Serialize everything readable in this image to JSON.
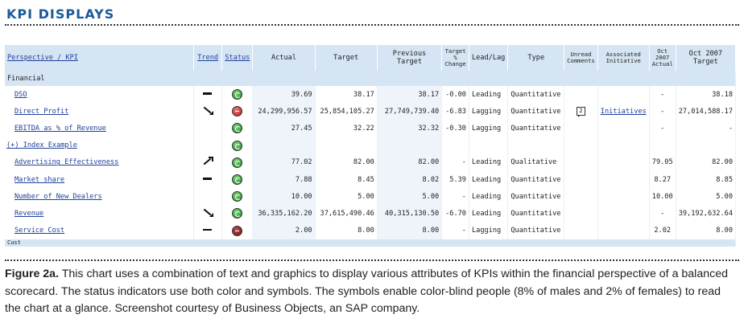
{
  "header": {
    "title": "KPI DISPLAYS"
  },
  "table": {
    "columns": {
      "perspective": "Perspective / KPI",
      "trend": "Trend",
      "status": "Status",
      "actual": "Actual",
      "target": "Target",
      "previous_target": "Previous Target",
      "target_pct_change": "Target % Change",
      "lead_lag": "Lead/Lag",
      "type": "Type",
      "unread_comments": "Unread Comments",
      "associated_initiative": "Associated Initiative",
      "oct_actual": "Oct 2007 Actual",
      "oct_target": "Oct 2007 Target"
    },
    "group_label": "Financial",
    "rows": [
      {
        "kpi": "DSO",
        "trend": "flat",
        "status": "green",
        "actual": "39.69",
        "target": "38.17",
        "prev": "38.17",
        "pct": "-0.00",
        "lead_lag": "Leading",
        "type": "Quantitative",
        "comments": "",
        "initiative": "",
        "oct_actual": "-",
        "oct_target": "38.18",
        "link": true
      },
      {
        "kpi": "Direct Profit",
        "trend": "down",
        "status": "red",
        "actual": "24,299,956.57",
        "target": "25,854,105.27",
        "prev": "27,749,739.40",
        "pct": "-6.83",
        "lead_lag": "Lagging",
        "type": "Quantitative",
        "comments": "2",
        "initiative": "Initiatives",
        "oct_actual": "-",
        "oct_target": "27,014,588.17",
        "link": true
      },
      {
        "kpi": "EBITDA as % of Revenue",
        "trend": "",
        "status": "green",
        "actual": "27.45",
        "target": "32.22",
        "prev": "32.32",
        "pct": "-0.30",
        "lead_lag": "Lagging",
        "type": "Quantitative",
        "comments": "",
        "initiative": "",
        "oct_actual": "-",
        "oct_target": "-",
        "link": true
      },
      {
        "kpi": "(+) Index Example",
        "trend": "",
        "status": "green",
        "actual": "",
        "target": "",
        "prev": "",
        "pct": "",
        "lead_lag": "",
        "type": "",
        "comments": "",
        "initiative": "",
        "oct_actual": "",
        "oct_target": "",
        "link": false
      },
      {
        "kpi": "Advertising Effectiveness",
        "trend": "up",
        "status": "green",
        "actual": "77.02",
        "target": "82.00",
        "prev": "82.00",
        "pct": "-",
        "lead_lag": "Leading",
        "type": "Qualitative",
        "comments": "",
        "initiative": "",
        "oct_actual": "79.05",
        "oct_target": "82.00",
        "link": true
      },
      {
        "kpi": "Market share",
        "trend": "flat",
        "status": "green",
        "actual": "7.88",
        "target": "8.45",
        "prev": "8.02",
        "pct": "5.39",
        "lead_lag": "Leading",
        "type": "Quantitative",
        "comments": "",
        "initiative": "",
        "oct_actual": "8.27",
        "oct_target": "8.85",
        "link": true
      },
      {
        "kpi": "Number of New Dealers",
        "trend": "",
        "status": "green",
        "actual": "10.00",
        "target": "5.00",
        "prev": "5.00",
        "pct": "-",
        "lead_lag": "Leading",
        "type": "Quantitative",
        "comments": "",
        "initiative": "",
        "oct_actual": "10.00",
        "oct_target": "5.00",
        "link": true
      },
      {
        "kpi": "Revenue",
        "trend": "down",
        "status": "green",
        "actual": "36,335,162.20",
        "target": "37,615,490.46",
        "prev": "40,315,130.50",
        "pct": "-6.70",
        "lead_lag": "Leading",
        "type": "Quantitative",
        "comments": "",
        "initiative": "",
        "oct_actual": "-",
        "oct_target": "39,192,632.64",
        "link": true
      },
      {
        "kpi": "Service Cost",
        "trend": "flat",
        "status": "dark",
        "actual": "2.00",
        "target": "8.00",
        "prev": "8.00",
        "pct": "-",
        "lead_lag": "Lagging",
        "type": "Quantitative",
        "comments": "",
        "initiative": "",
        "oct_actual": "2.02",
        "oct_target": "8.00",
        "link": true
      }
    ],
    "bottom_group_partial": "Cust"
  },
  "caption": {
    "label": "Figure 2a.",
    "text": " This chart uses a combination of text and graphics to display various attributes of KPIs within the financial perspective of a balanced scorecard. The status indicators use both color and symbols. The symbols enable color-blind people (8% of males and 2% of females) to read the chart at a glance. Screenshot courtesy of Business Objects, an SAP company."
  },
  "colors": {
    "title": "#1a5a9a",
    "header_bg": "#d5e5f3",
    "link": "#1f3f9c",
    "status_green": "#1a8a1a",
    "status_red": "#b01818",
    "status_dark": "#6a0c0c"
  }
}
